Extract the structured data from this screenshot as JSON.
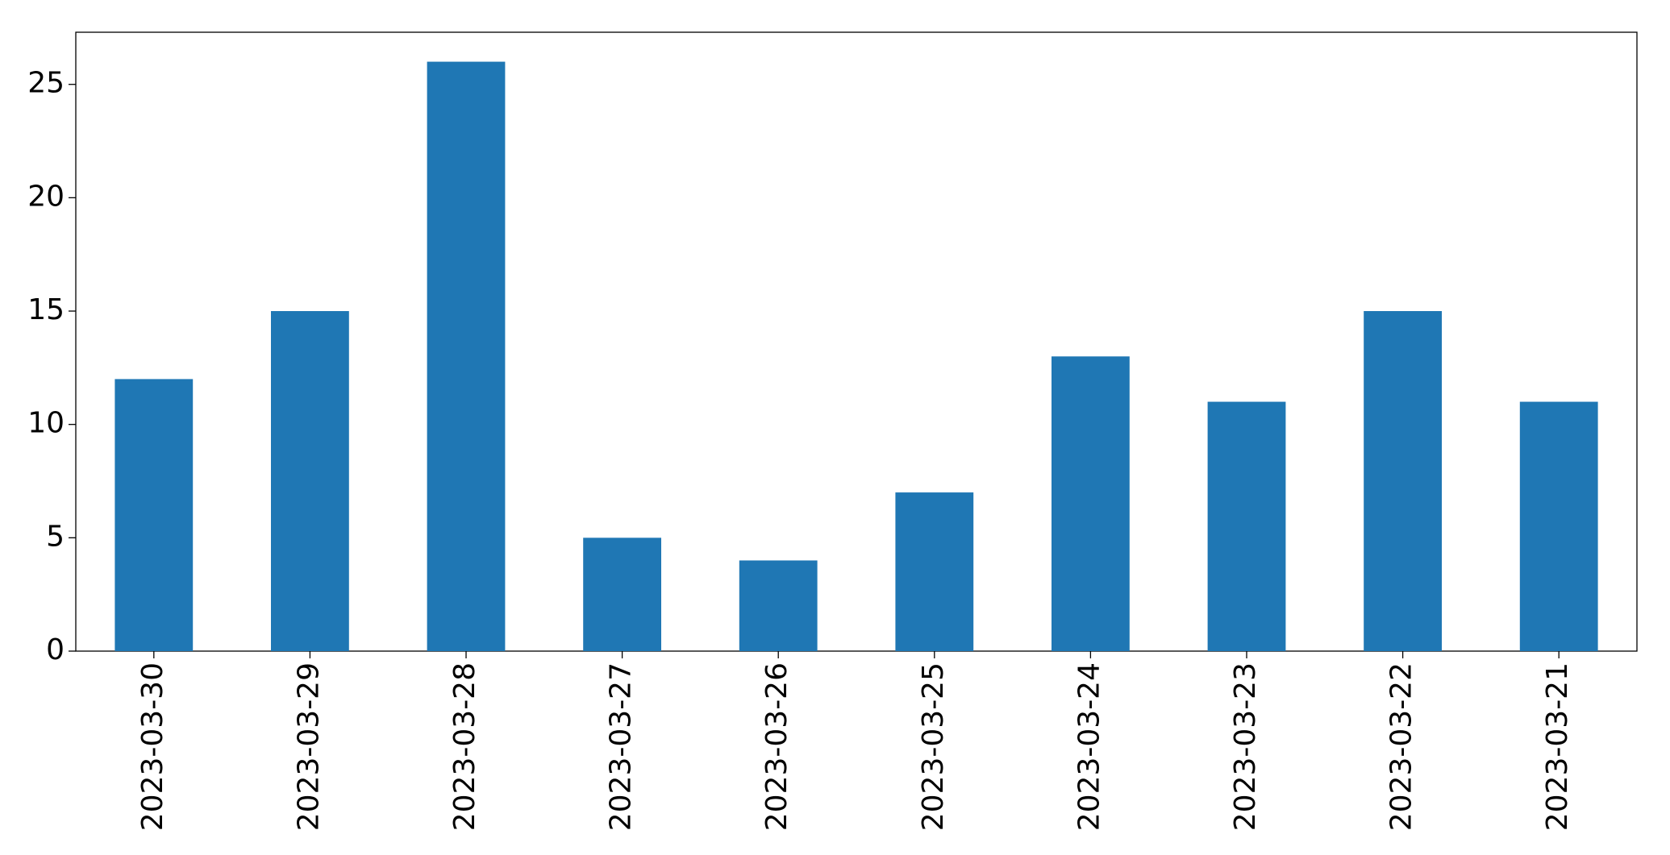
{
  "chart_data": {
    "type": "bar",
    "categories": [
      "2023-03-30",
      "2023-03-29",
      "2023-03-28",
      "2023-03-27",
      "2023-03-26",
      "2023-03-25",
      "2023-03-24",
      "2023-03-23",
      "2023-03-22",
      "2023-03-21"
    ],
    "values": [
      12,
      15,
      26,
      5,
      4,
      7,
      13,
      11,
      15,
      11
    ],
    "color": "#1f77b4",
    "ylim": [
      0,
      27.3
    ],
    "yticks": [
      0,
      5,
      10,
      15,
      20,
      25
    ],
    "grid": false
  }
}
